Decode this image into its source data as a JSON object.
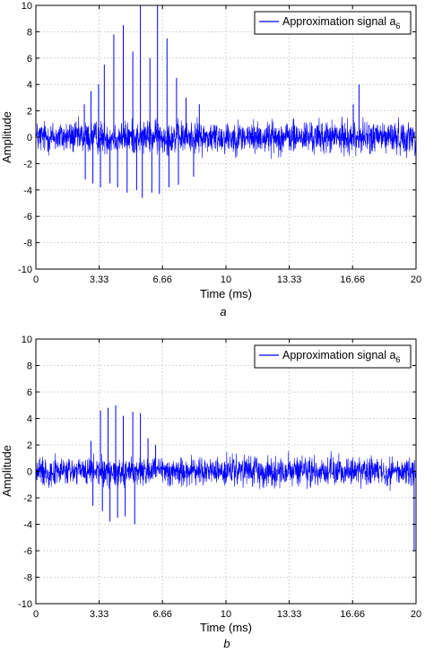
{
  "chart_data": [
    {
      "type": "line",
      "panel": "a",
      "caption": "a",
      "xlabel": "Time (ms)",
      "ylabel": "Amplitude",
      "xlim": [
        0,
        20
      ],
      "ylim": [
        -10,
        10
      ],
      "xticks": [
        0,
        3.33,
        6.66,
        10,
        13.33,
        16.66,
        20
      ],
      "xtick_labels": [
        "0",
        "3.33",
        "6.66",
        "10",
        "13.33",
        "16.66",
        "20"
      ],
      "yticks": [
        -10,
        -8,
        -6,
        -4,
        -2,
        0,
        2,
        4,
        6,
        8,
        10
      ],
      "grid": true,
      "legend_position": "top-right",
      "color": "#0000ff",
      "series": [
        {
          "name": "Approximation signal a6",
          "legend_main": "Approximation signal a",
          "legend_sub": "6",
          "noise_band": [
            -1.6,
            1.6
          ],
          "spikes": [
            {
              "x": 2.55,
              "y": 2.5
            },
            {
              "x": 2.6,
              "y": -3.2
            },
            {
              "x": 2.9,
              "y": 3.5
            },
            {
              "x": 3.0,
              "y": -3.5
            },
            {
              "x": 3.3,
              "y": 4.0
            },
            {
              "x": 3.4,
              "y": -3.8
            },
            {
              "x": 3.6,
              "y": 5.5
            },
            {
              "x": 3.9,
              "y": -3.5
            },
            {
              "x": 4.1,
              "y": 7.8
            },
            {
              "x": 4.3,
              "y": -3.8
            },
            {
              "x": 4.6,
              "y": 8.5
            },
            {
              "x": 4.8,
              "y": -4.2
            },
            {
              "x": 5.1,
              "y": 6.5
            },
            {
              "x": 5.3,
              "y": -4.0
            },
            {
              "x": 5.5,
              "y": 10.0
            },
            {
              "x": 5.6,
              "y": -4.6
            },
            {
              "x": 6.0,
              "y": 6.0
            },
            {
              "x": 6.1,
              "y": -4.2
            },
            {
              "x": 6.4,
              "y": 10.0
            },
            {
              "x": 6.5,
              "y": -4.3
            },
            {
              "x": 6.9,
              "y": 7.5
            },
            {
              "x": 7.0,
              "y": -3.8
            },
            {
              "x": 7.4,
              "y": 4.5
            },
            {
              "x": 7.5,
              "y": -3.6
            },
            {
              "x": 7.9,
              "y": 3.0
            },
            {
              "x": 8.3,
              "y": -3.0
            },
            {
              "x": 8.6,
              "y": 2.5
            },
            {
              "x": 16.7,
              "y": 2.5
            },
            {
              "x": 17.0,
              "y": 4.0
            }
          ]
        }
      ]
    },
    {
      "type": "line",
      "panel": "b",
      "caption": "b",
      "xlabel": "Time (ms)",
      "ylabel": "Amplitude",
      "xlim": [
        0,
        20
      ],
      "ylim": [
        -10,
        10
      ],
      "xticks": [
        0,
        3.33,
        6.66,
        10,
        13.33,
        16.66,
        20
      ],
      "xtick_labels": [
        "0",
        "3.33",
        "6.66",
        "10",
        "13.33",
        "16.66",
        "20"
      ],
      "yticks": [
        -10,
        -8,
        -6,
        -4,
        -2,
        0,
        2,
        4,
        6,
        8,
        10
      ],
      "grid": true,
      "legend_position": "top-right",
      "color": "#0000ff",
      "series": [
        {
          "name": "Approximation signal a6",
          "legend_main": "Approximation signal a",
          "legend_sub": "6",
          "noise_band": [
            -1.4,
            1.4
          ],
          "spikes": [
            {
              "x": 2.9,
              "y": 2.3
            },
            {
              "x": 3.0,
              "y": -2.6
            },
            {
              "x": 3.4,
              "y": 4.6
            },
            {
              "x": 3.5,
              "y": -3.0
            },
            {
              "x": 3.8,
              "y": 4.8
            },
            {
              "x": 3.9,
              "y": -3.8
            },
            {
              "x": 4.2,
              "y": 5.0
            },
            {
              "x": 4.3,
              "y": -3.5
            },
            {
              "x": 4.6,
              "y": 4.2
            },
            {
              "x": 4.7,
              "y": -3.4
            },
            {
              "x": 5.1,
              "y": 4.5
            },
            {
              "x": 5.2,
              "y": -4.0
            },
            {
              "x": 5.5,
              "y": 4.4
            },
            {
              "x": 5.9,
              "y": 2.5
            },
            {
              "x": 6.3,
              "y": 2.0
            },
            {
              "x": 19.9,
              "y": -6.0
            }
          ]
        }
      ]
    }
  ]
}
